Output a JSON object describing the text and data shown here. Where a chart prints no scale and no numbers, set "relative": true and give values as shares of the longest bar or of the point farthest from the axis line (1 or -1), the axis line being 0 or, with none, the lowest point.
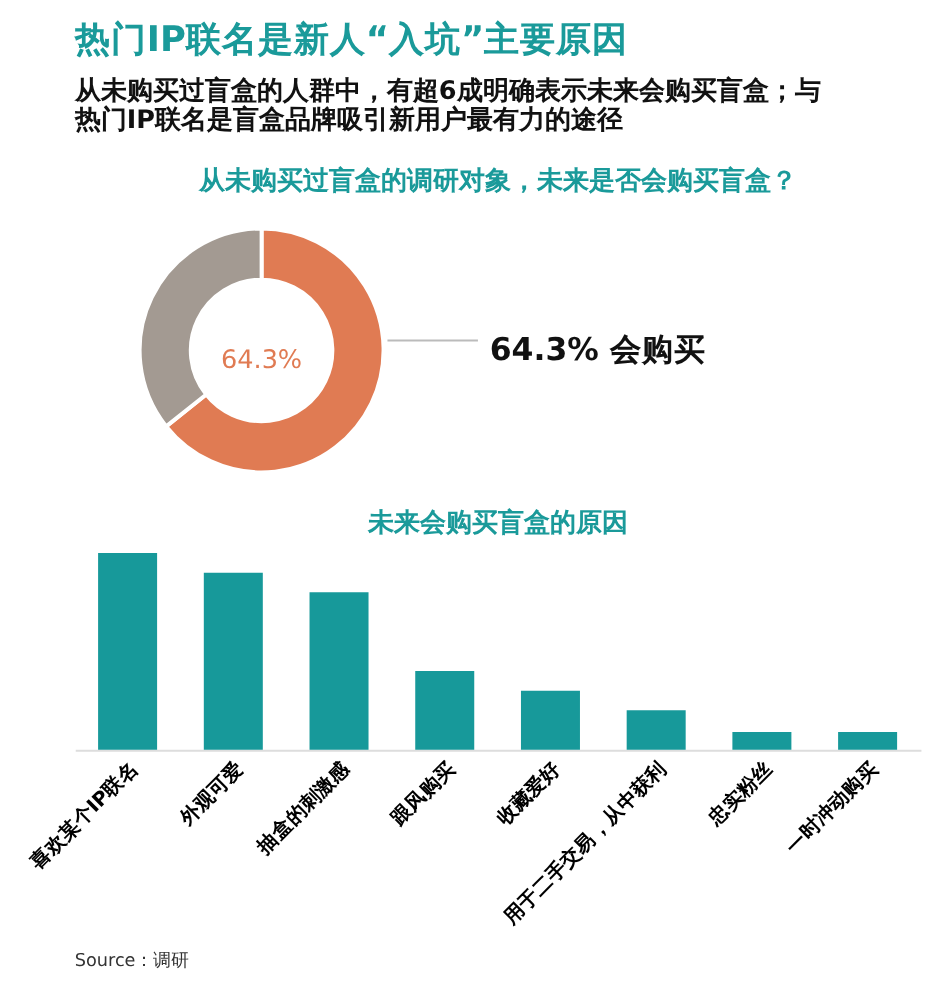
{
  "chart_data": [
    {
      "type": "donut",
      "title": "热门IP联名是新人“入坑”主要原因",
      "subtitle": "从未购买过盲盒的人群中，有超6成明确表示未来会购买盲盒；与热门IP联名是盲盒品牌吸引新用户最有力的途径",
      "annotations": [
        "从未购买过盲盒的调研对象，未来是否会购买盲盒？"
      ],
      "categories": [
        "会购买",
        null
      ],
      "values": [
        64.3,
        35.7
      ],
      "colors": [
        "#e07b53",
        "#a39a92"
      ],
      "value_labels": [
        "64.3%",
        null
      ]
    },
    {
      "type": "bar",
      "title": "未来会购买盲盒的原因",
      "relative": true,
      "categories": [
        "喜欢某个IP联名",
        "外观可爱",
        "抽盒的刺激感",
        "跟风购买",
        "收藏爱好",
        "用于二手交易，从中获利",
        "忠实粉丝",
        "一时冲动购买"
      ],
      "values": [
        1.0,
        0.9,
        0.8,
        0.4,
        0.3,
        0.2,
        0.09,
        0.09
      ],
      "color": "#17999a",
      "annotations": [
        "Source：调研"
      ]
    }
  ]
}
